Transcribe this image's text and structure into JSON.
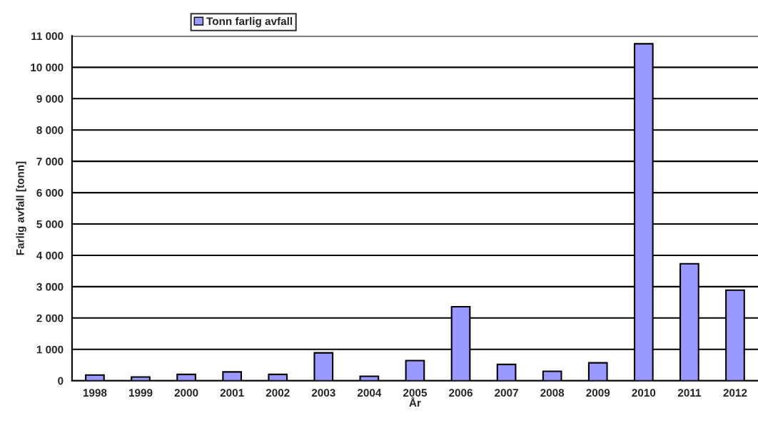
{
  "chart_data": {
    "type": "bar",
    "xlabel": "År",
    "ylabel": "Farlig avfall [tonn]",
    "categories": [
      "1998",
      "1999",
      "2000",
      "2001",
      "2002",
      "2003",
      "2004",
      "2005",
      "2006",
      "2007",
      "2008",
      "2009",
      "2010",
      "2011",
      "2012"
    ],
    "series": [
      {
        "name": "Tonn farlig avfall",
        "color": "#9999ff",
        "values": [
          180,
          120,
          200,
          280,
          200,
          890,
          140,
          640,
          2360,
          520,
          300,
          570,
          10750,
          3730,
          2890
        ]
      }
    ],
    "ylim": [
      0,
      11000
    ],
    "yticks": [
      {
        "value": 0,
        "label": "0"
      },
      {
        "value": 1000,
        "label": "1 000"
      },
      {
        "value": 2000,
        "label": "2 000"
      },
      {
        "value": 3000,
        "label": "3 000"
      },
      {
        "value": 4000,
        "label": "4 000"
      },
      {
        "value": 5000,
        "label": "5 000"
      },
      {
        "value": 6000,
        "label": "6 000"
      },
      {
        "value": 7000,
        "label": "7 000"
      },
      {
        "value": 8000,
        "label": "8 000"
      },
      {
        "value": 9000,
        "label": "9 000"
      },
      {
        "value": 10000,
        "label": "10 000"
      },
      {
        "value": 11000,
        "label": "11 000"
      }
    ],
    "grid": "y",
    "legend": "top"
  }
}
